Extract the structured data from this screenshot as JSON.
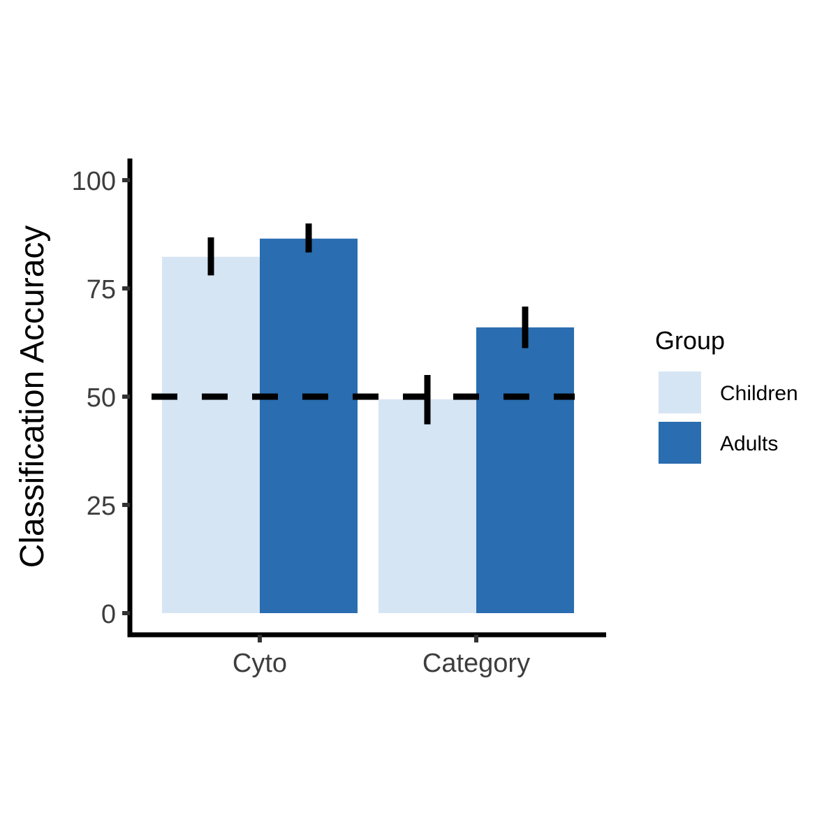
{
  "chart_data": {
    "type": "bar",
    "categories": [
      "Cyto",
      "Category"
    ],
    "ylabel": "Classification Accuracy",
    "xlabel": "",
    "ylim": [
      0,
      100
    ],
    "yticks": [
      0,
      25,
      50,
      75,
      100
    ],
    "reference_line": 50,
    "legend": {
      "title": "Group",
      "placement": "right"
    },
    "series": [
      {
        "name": "Children",
        "color": "#d6e5f4",
        "values": [
          82.3,
          49.4
        ],
        "err_low": [
          78.0,
          43.6
        ],
        "err_high": [
          86.8,
          55.0
        ]
      },
      {
        "name": "Adults",
        "color": "#2a6db0",
        "values": [
          86.5,
          66.0
        ],
        "err_low": [
          83.3,
          61.2
        ],
        "err_high": [
          90.0,
          70.8
        ]
      }
    ],
    "grid": false
  }
}
